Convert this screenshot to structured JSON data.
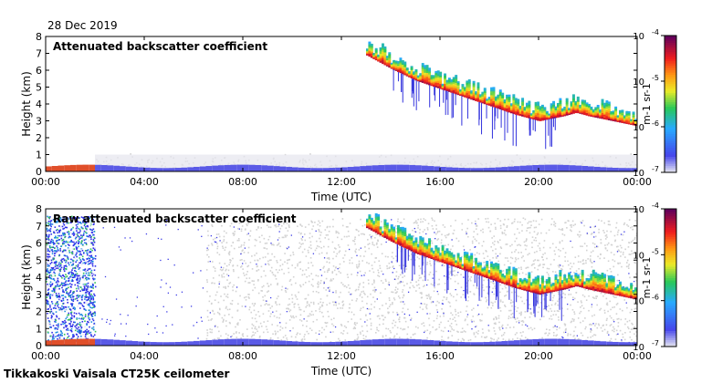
{
  "date": "28 Dec 2019",
  "footer": "Tikkakoski Vaisala CT25K ceilometer",
  "chart_data": [
    {
      "type": "heatmap",
      "title": "Attenuated backscatter coefficient",
      "xlabel": "Time (UTC)",
      "ylabel": "Height (km)",
      "xticks": [
        "00:00",
        "04:00",
        "08:00",
        "12:00",
        "16:00",
        "20:00",
        "00:00"
      ],
      "yticks": [
        "0",
        "1",
        "2",
        "3",
        "4",
        "5",
        "6",
        "7",
        "8"
      ],
      "xlim_hours": [
        0,
        24
      ],
      "ylim_km": [
        0,
        8
      ],
      "colorbar": {
        "unit": "m-1 sr-1",
        "ticks": [
          "10-7",
          "10-6",
          "10-5",
          "10-4"
        ],
        "range": [
          1e-07,
          0.0001
        ],
        "scale": "log"
      },
      "features": {
        "cloud_base_km": [
          [
            13.0,
            6.9
          ],
          [
            14.0,
            6.1
          ],
          [
            15.0,
            5.4
          ],
          [
            16.0,
            4.9
          ],
          [
            17.0,
            4.4
          ],
          [
            18.0,
            3.9
          ],
          [
            19.0,
            3.4
          ],
          [
            20.0,
            3.0
          ],
          [
            21.0,
            3.3
          ],
          [
            21.5,
            3.5
          ],
          [
            22.0,
            3.3
          ],
          [
            23.0,
            3.0
          ],
          [
            24.0,
            2.7
          ]
        ],
        "aerosol_layer_top_km": 0.3,
        "raw_noise": false
      }
    },
    {
      "type": "heatmap",
      "title": "Raw attenuated backscatter coefficient",
      "xlabel": "Time (UTC)",
      "ylabel": "Height (km)",
      "xticks": [
        "00:00",
        "04:00",
        "08:00",
        "12:00",
        "16:00",
        "20:00",
        "00:00"
      ],
      "yticks": [
        "0",
        "1",
        "2",
        "3",
        "4",
        "5",
        "6",
        "7",
        "8"
      ],
      "xlim_hours": [
        0,
        24
      ],
      "ylim_km": [
        0,
        8
      ],
      "colorbar": {
        "unit": "m-1 sr-1",
        "ticks": [
          "10-7",
          "10-6",
          "10-5",
          "10-4"
        ],
        "range": [
          1e-07,
          0.0001
        ],
        "scale": "log"
      },
      "features": {
        "cloud_base_km": [
          [
            13.0,
            6.9
          ],
          [
            14.0,
            6.1
          ],
          [
            15.0,
            5.4
          ],
          [
            16.0,
            4.9
          ],
          [
            17.0,
            4.4
          ],
          [
            18.0,
            3.9
          ],
          [
            19.0,
            3.4
          ],
          [
            20.0,
            3.0
          ],
          [
            21.0,
            3.3
          ],
          [
            21.5,
            3.5
          ],
          [
            22.0,
            3.3
          ],
          [
            23.0,
            3.0
          ],
          [
            24.0,
            2.7
          ]
        ],
        "aerosol_layer_top_km": 0.3,
        "raw_noise": true
      }
    }
  ]
}
